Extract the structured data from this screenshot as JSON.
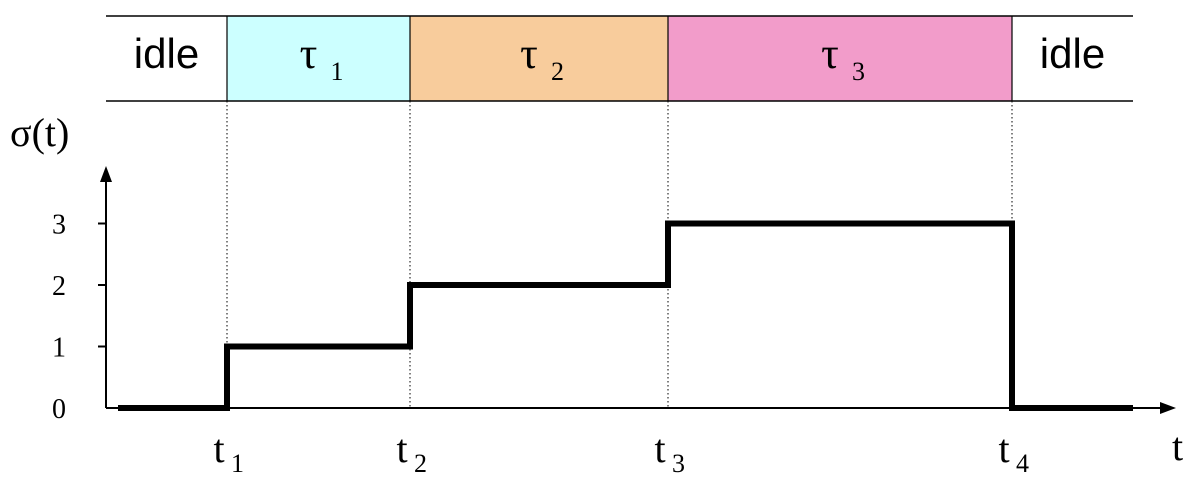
{
  "chart_data": {
    "type": "line",
    "step": true,
    "ylabel": "σ(t)",
    "xlabel": "t",
    "yticks": [
      0,
      1,
      2,
      3
    ],
    "ylim": [
      0,
      3
    ],
    "time_markers": [
      {
        "base": "t",
        "sub": "1"
      },
      {
        "base": "t",
        "sub": "2"
      },
      {
        "base": "t",
        "sub": "3"
      },
      {
        "base": "t",
        "sub": "4"
      }
    ],
    "intervals": [
      {
        "label": "idle",
        "sub": "",
        "color": "#ffffff",
        "value": 0
      },
      {
        "label": "τ",
        "sub": "1",
        "color": "#ccffff",
        "value": 1
      },
      {
        "label": "τ",
        "sub": "2",
        "color": "#f8cc9c",
        "value": 2
      },
      {
        "label": "τ",
        "sub": "3",
        "color": "#f29cca",
        "value": 3
      },
      {
        "label": "idle",
        "sub": "",
        "color": "#ffffff",
        "value": 0
      }
    ],
    "grid": false
  }
}
